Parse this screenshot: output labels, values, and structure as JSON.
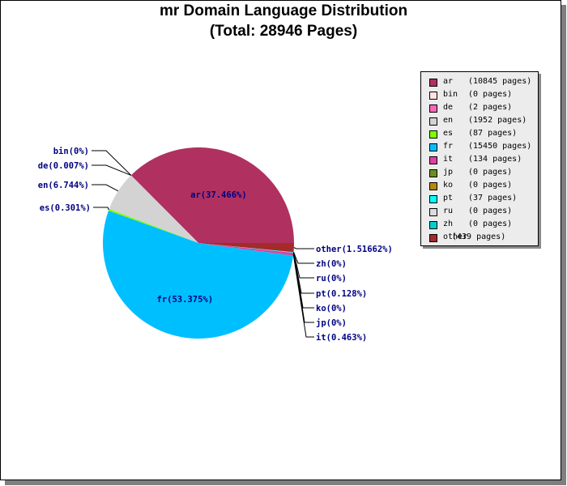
{
  "chart_data": {
    "type": "pie",
    "title": "mr Domain Language Distribution",
    "subtitle": "(Total: 28946 Pages)",
    "slices": [
      {
        "code": "ar",
        "pages": 10845,
        "percent": 37.466,
        "label": "ar(37.466%)",
        "legend_count": "(10845 pages)",
        "color": "#b03060"
      },
      {
        "code": "bin",
        "pages": 0,
        "percent": 0,
        "label": "bin(0%)",
        "legend_count": "(0 pages)",
        "color": "#ffe4e1"
      },
      {
        "code": "de",
        "pages": 2,
        "percent": 0.007,
        "label": "de(0.007%)",
        "legend_count": "(2 pages)",
        "color": "#ff69b4"
      },
      {
        "code": "en",
        "pages": 1952,
        "percent": 6.744,
        "label": "en(6.744%)",
        "legend_count": "(1952 pages)",
        "color": "#d3d3d3"
      },
      {
        "code": "es",
        "pages": 87,
        "percent": 0.301,
        "label": "es(0.301%)",
        "legend_count": "(87 pages)",
        "color": "#7fff00"
      },
      {
        "code": "fr",
        "pages": 15450,
        "percent": 53.375,
        "label": "fr(53.375%)",
        "legend_count": "(15450 pages)",
        "color": "#00bfff"
      },
      {
        "code": "it",
        "pages": 134,
        "percent": 0.463,
        "label": "it(0.463%)",
        "legend_count": "(134 pages)",
        "color": "#e040a0"
      },
      {
        "code": "jp",
        "pages": 0,
        "percent": 0,
        "label": "jp(0%)",
        "legend_count": "(0 pages)",
        "color": "#6b8e23"
      },
      {
        "code": "ko",
        "pages": 0,
        "percent": 0,
        "label": "ko(0%)",
        "legend_count": "(0 pages)",
        "color": "#b8860b"
      },
      {
        "code": "pt",
        "pages": 37,
        "percent": 0.128,
        "label": "pt(0.128%)",
        "legend_count": "(37 pages)",
        "color": "#00ffff"
      },
      {
        "code": "ru",
        "pages": 0,
        "percent": 0,
        "label": "ru(0%)",
        "legend_count": "(0 pages)",
        "color": "#dcdcdc"
      },
      {
        "code": "zh",
        "pages": 0,
        "percent": 0,
        "label": "zh(0%)",
        "legend_count": "(0 pages)",
        "color": "#00ced1"
      },
      {
        "code": "other",
        "pages": 439,
        "percent": 1.51662,
        "label": "other(1.51662%)",
        "legend_count": "(439 pages)",
        "color": "#a52a2a"
      }
    ],
    "legend_placement": "right"
  }
}
